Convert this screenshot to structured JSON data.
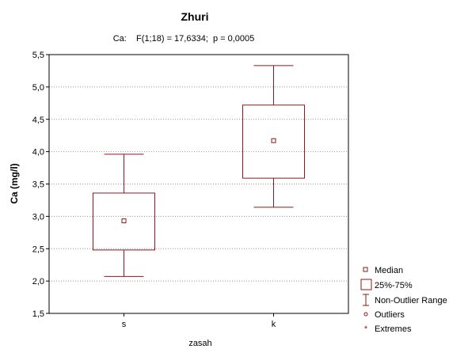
{
  "chart_data": {
    "type": "boxplot",
    "title": "Zhuri",
    "subtitle": "Ca:    F(1;18) = 17,6334;  p = 0,0005",
    "xlabel": "zasah",
    "ylabel": "Ca (mg/l)",
    "categories": [
      "s",
      "k"
    ],
    "ylim": [
      1.5,
      5.5
    ],
    "yticks": [
      "1,5",
      "2,0",
      "2,5",
      "3,0",
      "3,5",
      "4,0",
      "4,5",
      "5,0",
      "5,5"
    ],
    "grid": "horizontal dotted",
    "boxes": [
      {
        "category": "s",
        "median": 2.93,
        "q1": 2.48,
        "q3": 3.36,
        "min": 2.07,
        "max": 3.96
      },
      {
        "category": "k",
        "median": 4.17,
        "q1": 3.59,
        "q3": 4.72,
        "min": 3.14,
        "max": 5.33
      }
    ],
    "legend_position": "bottom-right",
    "legend": [
      "Median",
      "25%-75%",
      "Non-Outlier Range",
      "Outliers",
      "Extremes"
    ],
    "colors": {
      "box": "#8b1a1a",
      "axis": "#000000",
      "grid": "#999999"
    }
  }
}
